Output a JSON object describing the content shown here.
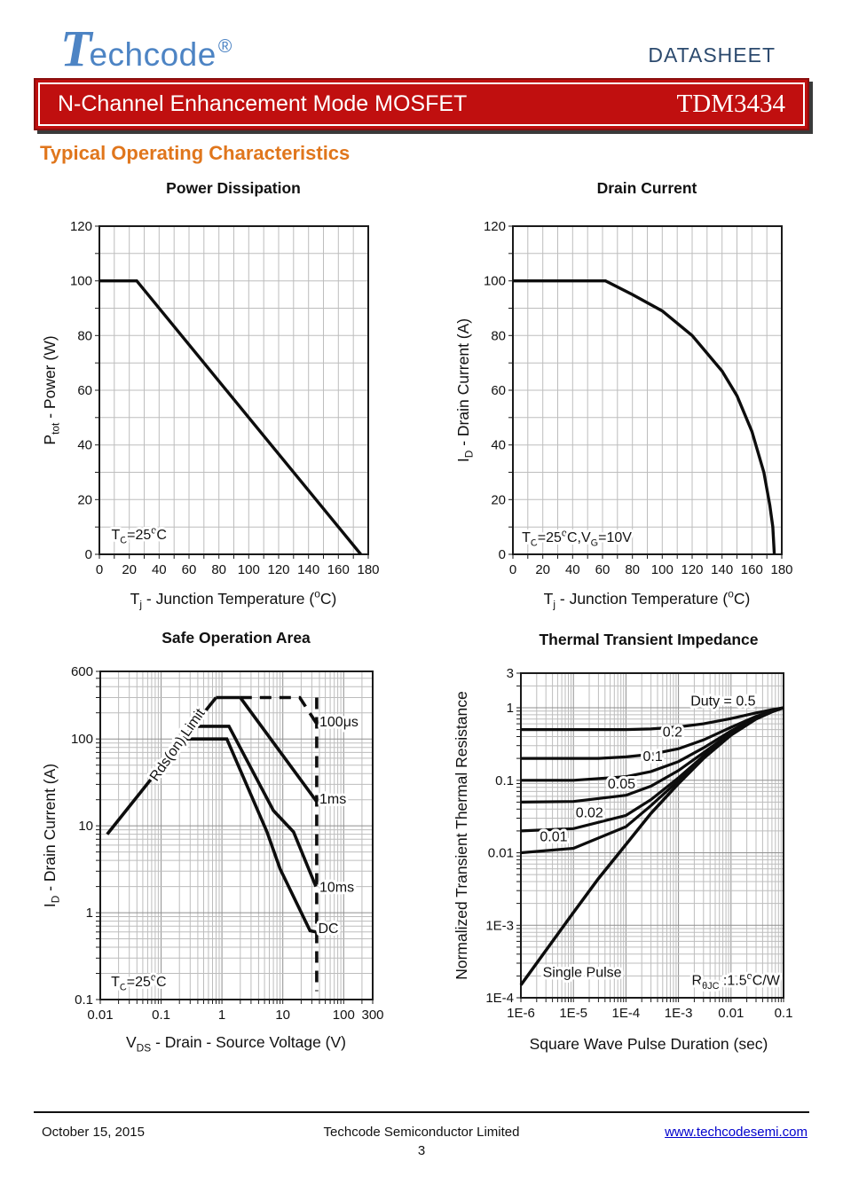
{
  "header": {
    "logo_t": "T",
    "logo_rest": "echcode",
    "logo_reg": "®",
    "datasheet_label": "DATASHEET",
    "banner": {
      "title": "N-Channel Enhancement Mode MOSFET",
      "part": "TDM3434",
      "bg_color": "#c00f0f"
    },
    "section_title": "Typical Operating Characteristics",
    "accent_orange": "#e0761c",
    "logo_blue": "#4d84c4",
    "datasheet_blue": "#2c4a6e"
  },
  "footer": {
    "date": "October 15, 2015",
    "company": "Techcode Semiconductor Limited",
    "page": "3",
    "website": "www.techcodesemi.com",
    "link_color": "#0000cc"
  },
  "chart_data": [
    {
      "key": "pd",
      "type": "line",
      "title": "Power Dissipation",
      "xscale": "linear",
      "yscale": "linear",
      "xlim": [
        0,
        180
      ],
      "ylim": [
        0,
        120
      ],
      "grid_step": [
        10,
        10
      ],
      "grid": true,
      "x_ticks": [
        [
          0,
          "0"
        ],
        [
          20,
          "20"
        ],
        [
          40,
          "40"
        ],
        [
          60,
          "60"
        ],
        [
          80,
          "80"
        ],
        [
          100,
          "100"
        ],
        [
          120,
          "120"
        ],
        [
          140,
          "140"
        ],
        [
          160,
          "160"
        ],
        [
          180,
          "180"
        ]
      ],
      "y_ticks": [
        [
          0,
          "0"
        ],
        [
          20,
          "20"
        ],
        [
          40,
          "40"
        ],
        [
          60,
          "60"
        ],
        [
          80,
          "80"
        ],
        [
          100,
          "100"
        ],
        [
          120,
          "120"
        ]
      ],
      "xlabel": [
        [
          "T"
        ],
        [
          "j",
          "sub"
        ],
        [
          " - Junction Temperature ("
        ],
        [
          "o",
          "sup"
        ],
        [
          "C)"
        ]
      ],
      "ylabel": [
        [
          "P"
        ],
        [
          "tot",
          "sub"
        ],
        [
          " - Power (W)"
        ]
      ],
      "curves": [
        {
          "name": "power-derating",
          "w": 3.4,
          "points": [
            [
              0,
              100
            ],
            [
              25,
              100
            ],
            [
              175,
              0
            ]
          ]
        }
      ],
      "labels": [
        {
          "parts": [
            [
              "T"
            ],
            [
              "C",
              "sub"
            ],
            [
              "=25"
            ],
            [
              "o",
              "sup"
            ],
            [
              "C"
            ]
          ],
          "x": 8,
          "y": 5.5,
          "anchor": "start"
        }
      ]
    },
    {
      "key": "dc",
      "type": "line",
      "title": "Drain Current",
      "xscale": "linear",
      "yscale": "linear",
      "xlim": [
        0,
        180
      ],
      "ylim": [
        0,
        120
      ],
      "grid_step": [
        10,
        10
      ],
      "grid": true,
      "x_ticks": [
        [
          0,
          "0"
        ],
        [
          20,
          "20"
        ],
        [
          40,
          "40"
        ],
        [
          60,
          "60"
        ],
        [
          80,
          "80"
        ],
        [
          100,
          "100"
        ],
        [
          120,
          "120"
        ],
        [
          140,
          "140"
        ],
        [
          160,
          "160"
        ],
        [
          180,
          "180"
        ]
      ],
      "y_ticks": [
        [
          0,
          "0"
        ],
        [
          20,
          "20"
        ],
        [
          40,
          "40"
        ],
        [
          60,
          "60"
        ],
        [
          80,
          "80"
        ],
        [
          100,
          "100"
        ],
        [
          120,
          "120"
        ]
      ],
      "xlabel": [
        [
          "T"
        ],
        [
          "j",
          "sub"
        ],
        [
          " - Junction Temperature ("
        ],
        [
          "o",
          "sup"
        ],
        [
          "C)"
        ]
      ],
      "ylabel": [
        [
          "I"
        ],
        [
          "D",
          "sub"
        ],
        [
          " - Drain Current (A)"
        ]
      ],
      "curves": [
        {
          "name": "current-derating",
          "w": 3.4,
          "points": [
            [
              0,
              100
            ],
            [
              62,
              100
            ],
            [
              80,
              95
            ],
            [
              100,
              89
            ],
            [
              120,
              80
            ],
            [
              140,
              67
            ],
            [
              150,
              58
            ],
            [
              160,
              45
            ],
            [
              168,
              30
            ],
            [
              172,
              18
            ],
            [
              174,
              10
            ],
            [
              175,
              0
            ]
          ]
        }
      ],
      "labels": [
        {
          "parts": [
            [
              "T"
            ],
            [
              "C",
              "sub"
            ],
            [
              "=25"
            ],
            [
              "o",
              "sup"
            ],
            [
              "C,V"
            ],
            [
              "G",
              "sub"
            ],
            [
              "=10V"
            ]
          ],
          "x": 6,
          "y": 4.5,
          "anchor": "start"
        }
      ]
    },
    {
      "key": "soa",
      "type": "line",
      "title": "Safe Operation Area",
      "xscale": "log",
      "yscale": "log",
      "xlim": [
        0.01,
        300
      ],
      "ylim": [
        0.1,
        600
      ],
      "grid": true,
      "x_ticks": [
        [
          0.01,
          "0.01"
        ],
        [
          0.1,
          "0.1"
        ],
        [
          1,
          "1"
        ],
        [
          10,
          "10"
        ],
        [
          100,
          "100"
        ],
        [
          300,
          "300"
        ]
      ],
      "y_ticks": [
        [
          600,
          "600"
        ],
        [
          100,
          "100"
        ],
        [
          10,
          "10"
        ],
        [
          1,
          "1"
        ],
        [
          0.1,
          "0.1"
        ]
      ],
      "xlabel": [
        [
          "V"
        ],
        [
          "DS",
          "sub"
        ],
        [
          " - Drain - Source Voltage (V)"
        ]
      ],
      "ylabel": [
        [
          "I"
        ],
        [
          "D",
          "sub"
        ],
        [
          " - Drain Current (A)"
        ]
      ],
      "curves": [
        {
          "name": "rds-on-limit",
          "w": 3.6,
          "points": [
            [
              0.013,
              8
            ],
            [
              0.8,
              300
            ]
          ]
        },
        {
          "name": "pulse-plateau",
          "w": 3.6,
          "points": [
            [
              0.8,
              300
            ],
            [
              2,
              300
            ]
          ]
        },
        {
          "name": "100us-pulse",
          "w": 3.6,
          "dash": "13 9",
          "points": [
            [
              2,
              300
            ],
            [
              19,
              300
            ],
            [
              36,
              150
            ]
          ]
        },
        {
          "name": "1ms-pulse",
          "w": 3.6,
          "points": [
            [
              2,
              300
            ],
            [
              36,
              19
            ]
          ]
        },
        {
          "name": "10ms-pulse",
          "w": 3.6,
          "points": [
            [
              0.34,
              140
            ],
            [
              1.3,
              140
            ],
            [
              7,
              15
            ],
            [
              15,
              8.5
            ],
            [
              35,
              2
            ]
          ]
        },
        {
          "name": "dc-limit",
          "w": 3.6,
          "points": [
            [
              0.23,
              100
            ],
            [
              1.2,
              100
            ],
            [
              5.5,
              8.5
            ],
            [
              9,
              3.2
            ],
            [
              28,
              0.62
            ],
            [
              35,
              0.6
            ]
          ]
        },
        {
          "name": "vds-max",
          "w": 3.6,
          "dash": "13 9",
          "points": [
            [
              36,
              300
            ],
            [
              36,
              0.125
            ]
          ]
        }
      ],
      "labels": [
        {
          "parts": [
            [
              "Rds(on) Limit"
            ]
          ],
          "x": 0.085,
          "y": 32,
          "anchor": "start",
          "rotate": -55
        },
        {
          "parts": [
            [
              "100μs"
            ]
          ],
          "x": 40,
          "y": 140,
          "anchor": "start"
        },
        {
          "parts": [
            [
              "1ms"
            ]
          ],
          "x": 40,
          "y": 18,
          "anchor": "start"
        },
        {
          "parts": [
            [
              "10ms"
            ]
          ],
          "x": 40,
          "y": 1.75,
          "anchor": "start"
        },
        {
          "parts": [
            [
              "DC"
            ]
          ],
          "x": 38,
          "y": 0.58,
          "anchor": "start"
        },
        {
          "parts": [
            [
              "T"
            ],
            [
              "C",
              "sub"
            ],
            [
              "=25"
            ],
            [
              "o",
              "sup"
            ],
            [
              "C"
            ]
          ],
          "x": 0.015,
          "y": 0.142,
          "anchor": "start"
        }
      ]
    },
    {
      "key": "tti",
      "type": "line",
      "title": "Thermal Transient Impedance",
      "xscale": "log",
      "yscale": "log",
      "xlim": [
        1e-06,
        0.1
      ],
      "ylim": [
        0.0001,
        3
      ],
      "grid": true,
      "x_ticks": [
        [
          1e-06,
          "1E-6"
        ],
        [
          1e-05,
          "1E-5"
        ],
        [
          0.0001,
          "1E-4"
        ],
        [
          0.001,
          "1E-3"
        ],
        [
          0.01,
          "0.01"
        ],
        [
          0.1,
          "0.1"
        ]
      ],
      "y_ticks": [
        [
          3,
          "3"
        ],
        [
          1,
          "1"
        ],
        [
          0.1,
          "0.1"
        ],
        [
          0.01,
          "0.01"
        ],
        [
          0.001,
          "1E-3"
        ],
        [
          0.0001,
          "1E-4"
        ]
      ],
      "xlabel": [
        [
          "Square Wave Pulse Duration (sec)"
        ]
      ],
      "ylabel": [
        [
          "Normalized Transient Thermal Resistance"
        ]
      ],
      "curves": [
        {
          "name": "duty-0.5",
          "w": 3.2,
          "points": [
            [
              1e-06,
              0.5
            ],
            [
              0.0001,
              0.5
            ],
            [
              0.0003,
              0.51
            ],
            [
              0.001,
              0.545
            ],
            [
              0.003,
              0.6
            ],
            [
              0.01,
              0.71
            ],
            [
              0.03,
              0.85
            ],
            [
              0.06,
              0.94
            ],
            [
              0.1,
              1
            ]
          ]
        },
        {
          "name": "duty-0.2",
          "w": 3.2,
          "points": [
            [
              1e-06,
              0.2
            ],
            [
              3e-05,
              0.2
            ],
            [
              0.0001,
              0.21
            ],
            [
              0.0003,
              0.228
            ],
            [
              0.001,
              0.272
            ],
            [
              0.003,
              0.36
            ],
            [
              0.01,
              0.536
            ],
            [
              0.03,
              0.76
            ],
            [
              0.06,
              0.9
            ],
            [
              0.1,
              1
            ]
          ]
        },
        {
          "name": "duty-0.1",
          "w": 3.2,
          "points": [
            [
              1e-06,
              0.1
            ],
            [
              1e-05,
              0.1
            ],
            [
              0.0001,
              0.112
            ],
            [
              0.0003,
              0.132
            ],
            [
              0.001,
              0.181
            ],
            [
              0.003,
              0.28
            ],
            [
              0.01,
              0.478
            ],
            [
              0.03,
              0.73
            ],
            [
              0.06,
              0.89
            ],
            [
              0.1,
              1
            ]
          ]
        },
        {
          "name": "duty-0.05",
          "w": 3.2,
          "points": [
            [
              1e-06,
              0.05
            ],
            [
              1e-05,
              0.051
            ],
            [
              0.0001,
              0.062
            ],
            [
              0.0003,
              0.083
            ],
            [
              0.001,
              0.136
            ],
            [
              0.003,
              0.24
            ],
            [
              0.01,
              0.45
            ],
            [
              0.03,
              0.715
            ],
            [
              0.06,
              0.886
            ],
            [
              0.1,
              1
            ]
          ]
        },
        {
          "name": "duty-0.02",
          "w": 3.2,
          "points": [
            [
              1e-06,
              0.02
            ],
            [
              1e-05,
              0.0215
            ],
            [
              0.0001,
              0.0327
            ],
            [
              0.0003,
              0.054
            ],
            [
              0.001,
              0.108
            ],
            [
              0.003,
              0.216
            ],
            [
              0.01,
              0.43
            ],
            [
              0.03,
              0.706
            ],
            [
              0.06,
              0.882
            ],
            [
              0.1,
              1
            ]
          ]
        },
        {
          "name": "duty-0.01",
          "w": 3.2,
          "points": [
            [
              1e-06,
              0.01
            ],
            [
              1e-05,
              0.0115
            ],
            [
              0.0001,
              0.0229
            ],
            [
              0.0003,
              0.0447
            ],
            [
              0.001,
              0.099
            ],
            [
              0.003,
              0.208
            ],
            [
              0.01,
              0.424
            ],
            [
              0.03,
              0.703
            ],
            [
              0.06,
              0.881
            ],
            [
              0.1,
              1
            ]
          ]
        },
        {
          "name": "single-pulse",
          "w": 3.5,
          "points": [
            [
              1e-06,
              0.00015
            ],
            [
              3e-06,
              0.00045
            ],
            [
              1e-05,
              0.0015
            ],
            [
              3e-05,
              0.0044
            ],
            [
              0.0001,
              0.013
            ],
            [
              0.0003,
              0.035
            ],
            [
              0.001,
              0.09
            ],
            [
              0.003,
              0.2
            ],
            [
              0.01,
              0.42
            ],
            [
              0.03,
              0.7
            ],
            [
              0.06,
              0.88
            ],
            [
              0.1,
              1
            ]
          ]
        }
      ],
      "labels": [
        {
          "parts": [
            [
              "Duty = 0.5"
            ]
          ],
          "x": 0.0017,
          "y": 1.08,
          "anchor": "start"
        },
        {
          "parts": [
            [
              "0.2"
            ]
          ],
          "x": 0.0005,
          "y": 0.4,
          "anchor": "start"
        },
        {
          "parts": [
            [
              "0.1"
            ]
          ],
          "x": 0.00021,
          "y": 0.185,
          "anchor": "start"
        },
        {
          "parts": [
            [
              "0.05"
            ]
          ],
          "x": 4.5e-05,
          "y": 0.077,
          "anchor": "start"
        },
        {
          "parts": [
            [
              "0.02"
            ]
          ],
          "x": 1.1e-05,
          "y": 0.031,
          "anchor": "start"
        },
        {
          "parts": [
            [
              "0.01"
            ]
          ],
          "x": 2.3e-06,
          "y": 0.0145,
          "anchor": "start"
        },
        {
          "parts": [
            [
              "Single Pulse"
            ]
          ],
          "x": 2.6e-06,
          "y": 0.000195,
          "anchor": "start"
        },
        {
          "parts": [
            [
              "R"
            ],
            [
              "θJC",
              "sub"
            ],
            [
              " :1.5"
            ],
            [
              "o",
              "sup"
            ],
            [
              "C/W"
            ]
          ],
          "x": 0.085,
          "y": 0.00015,
          "anchor": "end"
        }
      ]
    }
  ]
}
